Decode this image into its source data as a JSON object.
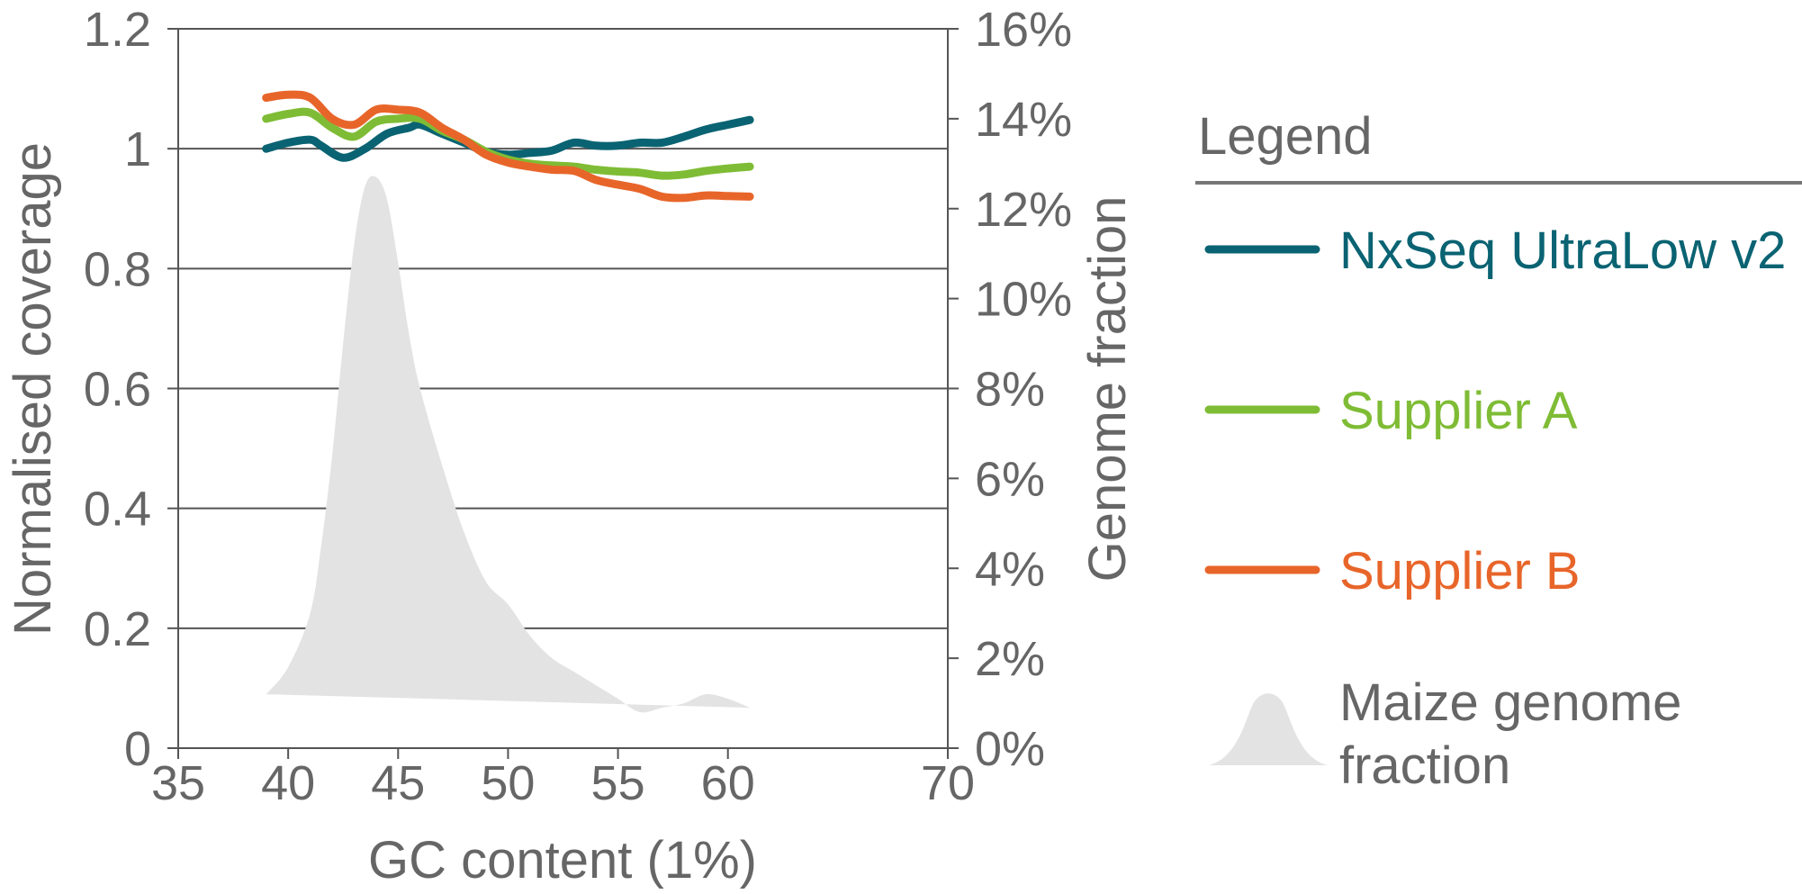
{
  "colors": {
    "nxseq": "#0a6372",
    "supplier_a": "#7fbc35",
    "supplier_b": "#e8652a",
    "genome_area": "#e3e3e3",
    "grid": "#555555",
    "text": "#666666"
  },
  "chart_data": {
    "type": "line",
    "xlabel": "GC content (1%)",
    "ylabel_left": "Normalised coverage",
    "ylabel_right": "Genome fraction",
    "xlim": [
      35,
      70
    ],
    "ylim_left": [
      0,
      1.2
    ],
    "ylim_right": [
      0,
      16
    ],
    "x_ticks": [
      "35",
      "40",
      "45",
      "50",
      "55",
      "60",
      "70"
    ],
    "y_left_ticks": [
      "0",
      "0.2",
      "0.4",
      "0.6",
      "0.8",
      "1",
      "1.2"
    ],
    "y_right_ticks": [
      "0%",
      "2%",
      "4%",
      "6%",
      "8%",
      "10%",
      "12%",
      "14%",
      "16%"
    ],
    "grid": "horizontal",
    "legend_placement": "right",
    "legend_title": "Legend",
    "series": [
      {
        "name": "NxSeq UltraLow v2",
        "color_key": "nxseq",
        "axis": "left",
        "x": [
          39,
          40,
          41,
          41.5,
          42.5,
          43.5,
          44.5,
          45.5,
          46,
          47,
          48,
          49,
          50,
          51,
          52,
          53,
          54,
          55,
          56,
          57,
          58,
          59,
          60,
          61
        ],
        "y": [
          1.0,
          1.01,
          1.015,
          1.005,
          0.985,
          1.0,
          1.025,
          1.035,
          1.04,
          1.025,
          1.01,
          0.995,
          0.99,
          0.993,
          0.997,
          1.01,
          1.005,
          1.005,
          1.01,
          1.01,
          1.02,
          1.032,
          1.04,
          1.048
        ]
      },
      {
        "name": "Supplier A",
        "color_key": "supplier_a",
        "axis": "left",
        "x": [
          39,
          40,
          41,
          42,
          43,
          44,
          45,
          46,
          47,
          48,
          49,
          50,
          51,
          52,
          53,
          54,
          55,
          56,
          57,
          58,
          59,
          60,
          61
        ],
        "y": [
          1.05,
          1.058,
          1.06,
          1.035,
          1.02,
          1.045,
          1.05,
          1.05,
          1.03,
          1.015,
          0.995,
          0.982,
          0.975,
          0.972,
          0.97,
          0.965,
          0.962,
          0.96,
          0.955,
          0.957,
          0.963,
          0.967,
          0.97
        ]
      },
      {
        "name": "Supplier B",
        "color_key": "supplier_b",
        "axis": "left",
        "x": [
          39,
          40,
          41,
          42,
          43,
          44,
          45,
          46,
          47,
          48,
          49,
          50,
          51,
          52,
          53,
          54,
          55,
          56,
          57,
          58,
          59,
          60,
          61
        ],
        "y": [
          1.085,
          1.09,
          1.085,
          1.05,
          1.04,
          1.065,
          1.065,
          1.06,
          1.035,
          1.015,
          0.99,
          0.977,
          0.97,
          0.965,
          0.963,
          0.948,
          0.94,
          0.933,
          0.92,
          0.918,
          0.922,
          0.921,
          0.92
        ]
      }
    ],
    "area": {
      "name": "Maize genome fraction",
      "color_key": "genome_area",
      "axis": "right",
      "x": [
        39,
        40,
        41,
        41.5,
        42,
        42.5,
        43,
        43.5,
        44,
        44.5,
        45,
        45.5,
        46,
        47,
        48,
        49,
        50,
        51,
        52,
        53,
        54,
        55,
        56,
        57,
        58,
        59,
        60,
        61
      ],
      "y_top": [
        1.2,
        1.8,
        3.0,
        4.5,
        6.5,
        9.0,
        11.2,
        12.5,
        12.7,
        12.2,
        10.8,
        9.2,
        8.0,
        6.3,
        4.8,
        3.7,
        3.2,
        2.5,
        2.0,
        1.7,
        1.4,
        1.1,
        0.8,
        0.9,
        1.0,
        1.2,
        1.1,
        0.9
      ],
      "y_bottom_start": 1.2,
      "y_bottom_end": 0.9
    }
  },
  "legend": {
    "title": "Legend",
    "items": [
      {
        "label": "NxSeq UltraLow v2",
        "color_key": "nxseq",
        "kind": "line"
      },
      {
        "label": "Supplier A",
        "color_key": "supplier_a",
        "kind": "line"
      },
      {
        "label": "Supplier B",
        "color_key": "supplier_b",
        "kind": "line"
      },
      {
        "label_line1": "Maize genome",
        "label_line2": "fraction",
        "color_key": "genome_area",
        "kind": "area"
      }
    ]
  }
}
